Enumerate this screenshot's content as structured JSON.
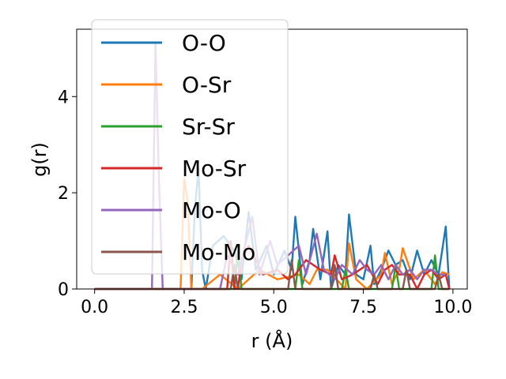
{
  "chart_data": {
    "type": "line",
    "title": "",
    "xlabel": "r (Å)",
    "ylabel": "g(r)",
    "xlim": [
      -0.5,
      10.4
    ],
    "ylim": [
      0,
      5.4
    ],
    "xticks": [
      0.0,
      2.5,
      5.0,
      7.5,
      10.0
    ],
    "xtick_labels": [
      "0.0",
      "2.5",
      "5.0",
      "7.5",
      "10.0"
    ],
    "yticks": [
      0,
      2,
      4
    ],
    "ytick_labels": [
      "0",
      "2",
      "4"
    ],
    "grid": false,
    "legend_position": "top-left",
    "series": [
      {
        "name": "O-O",
        "color": "#1f77b4",
        "x": [
          0.0,
          2.7,
          2.8,
          2.9,
          3.0,
          3.1,
          3.3,
          3.6,
          3.9,
          4.1,
          4.3,
          4.5,
          4.8,
          5.0,
          5.3,
          5.5,
          5.6,
          5.8,
          6.0,
          6.1,
          6.3,
          6.5,
          6.6,
          6.8,
          7.0,
          7.1,
          7.3,
          7.5,
          7.7,
          7.8,
          8.0,
          8.2,
          8.4,
          8.6,
          8.8,
          9.0,
          9.2,
          9.4,
          9.6,
          9.8,
          9.9
        ],
        "y": [
          0.0,
          0.0,
          1.7,
          2.5,
          0.4,
          0.0,
          0.9,
          1.1,
          0.8,
          0.2,
          1.6,
          0.4,
          0.9,
          0.3,
          0.8,
          0.4,
          1.5,
          0.1,
          0.6,
          1.25,
          0.2,
          1.2,
          0.0,
          0.5,
          0.3,
          1.55,
          0.3,
          0.2,
          0.9,
          0.1,
          0.4,
          0.8,
          0.5,
          0.6,
          0.2,
          0.8,
          0.3,
          0.6,
          0.3,
          1.3,
          0.0
        ]
      },
      {
        "name": "O-Sr",
        "color": "#ff7f0e",
        "x": [
          0.0,
          2.4,
          2.5,
          2.6,
          2.7,
          3.0,
          3.5,
          4.0,
          4.6,
          5.1,
          5.7,
          6.0,
          6.2,
          6.5,
          7.0,
          7.1,
          7.3,
          7.6,
          8.0,
          8.1,
          8.3,
          8.5,
          8.6,
          8.9,
          9.2,
          9.5,
          9.7,
          9.9
        ],
        "y": [
          0.0,
          0.0,
          2.3,
          1.8,
          0.0,
          0.0,
          0.3,
          0.0,
          0.4,
          0.2,
          0.3,
          0.1,
          0.4,
          0.4,
          0.0,
          0.95,
          0.2,
          0.0,
          0.3,
          0.75,
          0.1,
          0.4,
          0.85,
          0.2,
          0.4,
          0.1,
          0.35,
          0.3
        ]
      },
      {
        "name": "Sr-Sr",
        "color": "#2ca02c",
        "x": [
          0.0,
          3.9,
          4.0,
          4.1,
          5.6,
          5.7,
          5.8,
          6.9,
          7.0,
          7.1,
          8.3,
          8.4,
          8.5,
          9.4,
          9.5,
          9.6,
          9.9
        ],
        "y": [
          0.0,
          0.0,
          0.8,
          0.0,
          0.0,
          0.6,
          0.0,
          0.0,
          0.4,
          0.0,
          0.0,
          0.5,
          0.0,
          0.0,
          0.7,
          0.0,
          0.0
        ]
      },
      {
        "name": "Mo-Sr",
        "color": "#d62728",
        "x": [
          0.0,
          3.7,
          3.8,
          3.9,
          4.0,
          4.1,
          4.3,
          4.7,
          5.1,
          5.4,
          5.6,
          5.9,
          6.3,
          6.6,
          6.7,
          6.9,
          7.2,
          7.6,
          7.9,
          8.1,
          8.3,
          8.5,
          8.8,
          9.0,
          9.2,
          9.4,
          9.6,
          9.8,
          9.9
        ],
        "y": [
          0.0,
          0.0,
          1.0,
          0.0,
          0.0,
          0.6,
          0.9,
          0.3,
          0.4,
          0.2,
          0.3,
          0.6,
          0.4,
          0.3,
          0.7,
          0.2,
          0.3,
          0.5,
          0.1,
          0.4,
          0.5,
          0.3,
          0.3,
          0.0,
          0.3,
          0.4,
          0.2,
          0.3,
          0.0
        ]
      },
      {
        "name": "Mo-O",
        "color": "#9467bd",
        "x": [
          0.0,
          1.6,
          1.7,
          1.8,
          1.9,
          3.5,
          3.7,
          4.0,
          4.2,
          4.4,
          4.6,
          4.9,
          5.1,
          5.4,
          5.7,
          5.9,
          6.2,
          6.4,
          6.7,
          6.9,
          7.2,
          7.4,
          7.6,
          7.8,
          8.0,
          8.2,
          8.4,
          8.6,
          8.8,
          9.0,
          9.2,
          9.4,
          9.6,
          9.8
        ],
        "y": [
          0.0,
          0.0,
          5.1,
          2.2,
          0.0,
          0.0,
          0.7,
          0.3,
          0.9,
          1.5,
          0.3,
          1.0,
          0.5,
          0.7,
          0.9,
          0.3,
          1.15,
          0.4,
          0.2,
          0.5,
          0.3,
          0.6,
          0.4,
          0.3,
          0.5,
          0.2,
          0.5,
          0.3,
          0.4,
          0.2,
          0.4,
          0.4,
          0.3,
          0.3
        ]
      },
      {
        "name": "Mo-Mo",
        "color": "#8c564b",
        "x": [
          0.0,
          3.8,
          3.9,
          4.0,
          5.4,
          5.5,
          5.6,
          6.6,
          6.7,
          6.8,
          7.7,
          7.8,
          7.9,
          8.6,
          8.7,
          8.8,
          9.5,
          9.6,
          9.7,
          9.9
        ],
        "y": [
          0.0,
          0.0,
          0.5,
          0.0,
          0.0,
          0.6,
          0.0,
          0.0,
          0.5,
          0.0,
          0.0,
          0.3,
          0.0,
          0.0,
          0.4,
          0.0,
          0.0,
          0.3,
          0.0,
          0.0
        ]
      }
    ]
  }
}
